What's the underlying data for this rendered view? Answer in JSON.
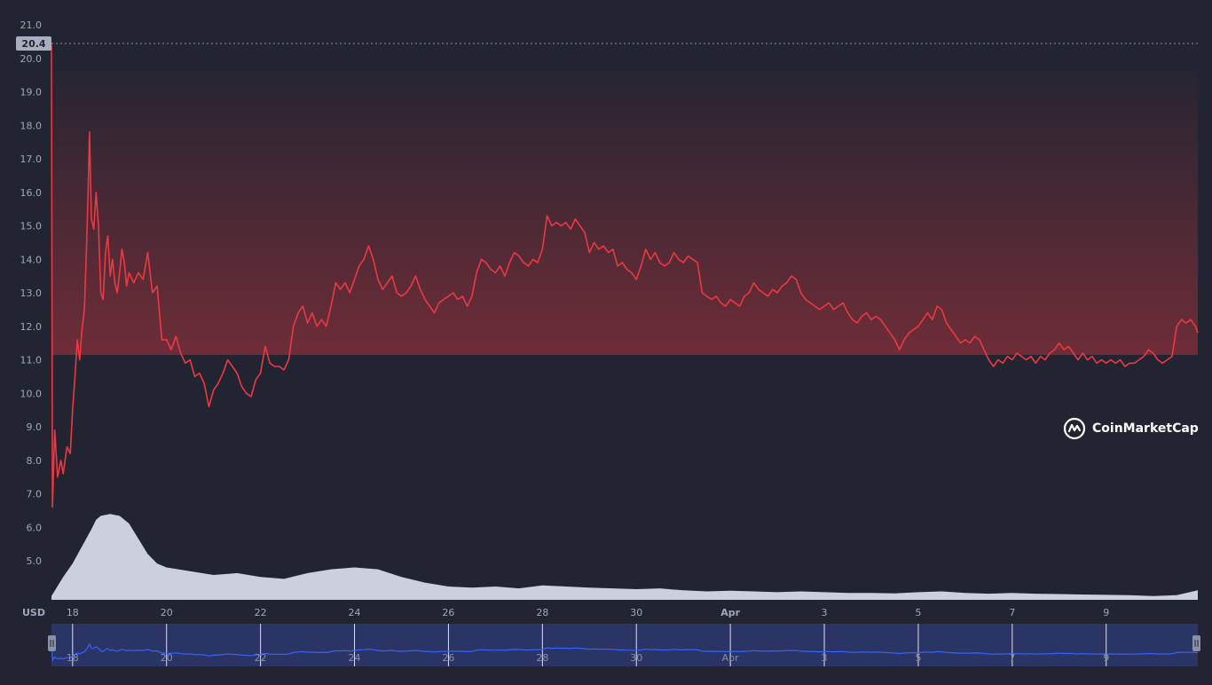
{
  "chart_data": {
    "type": "line",
    "currency_label": "USD",
    "current_price_label": "20.4",
    "ylim": [
      4.2,
      21.0
    ],
    "y_ticks": [
      "21.0",
      "20.0",
      "19.0",
      "18.0",
      "17.0",
      "16.0",
      "15.0",
      "14.0",
      "13.0",
      "12.0",
      "11.0",
      "10.0",
      "9.0",
      "8.0",
      "7.0",
      "6.0",
      "5.0"
    ],
    "x_tick_labels": [
      {
        "label": "18",
        "day": 18
      },
      {
        "label": "20",
        "day": 20
      },
      {
        "label": "22",
        "day": 22
      },
      {
        "label": "24",
        "day": 24
      },
      {
        "label": "26",
        "day": 26
      },
      {
        "label": "28",
        "day": 28
      },
      {
        "label": "30",
        "day": 30
      },
      {
        "label": "Apr",
        "day": 32,
        "bold": true
      },
      {
        "label": "3",
        "day": 34
      },
      {
        "label": "5",
        "day": 36
      },
      {
        "label": "7",
        "day": 38
      },
      {
        "label": "9",
        "day": 40
      }
    ],
    "x_range_days": [
      17.55,
      41.95
    ],
    "price_series": {
      "color": "#ea3943",
      "points": [
        [
          17.55,
          20.4
        ],
        [
          17.57,
          6.6
        ],
        [
          17.62,
          8.9
        ],
        [
          17.68,
          7.5
        ],
        [
          17.75,
          8.0
        ],
        [
          17.8,
          7.6
        ],
        [
          17.88,
          8.4
        ],
        [
          17.95,
          8.2
        ],
        [
          18.0,
          9.5
        ],
        [
          18.05,
          10.5
        ],
        [
          18.1,
          11.6
        ],
        [
          18.15,
          11.0
        ],
        [
          18.2,
          11.9
        ],
        [
          18.25,
          12.5
        ],
        [
          18.3,
          14.5
        ],
        [
          18.33,
          16.0
        ],
        [
          18.36,
          17.8
        ],
        [
          18.4,
          15.2
        ],
        [
          18.45,
          14.9
        ],
        [
          18.5,
          16.0
        ],
        [
          18.55,
          15.0
        ],
        [
          18.6,
          13.0
        ],
        [
          18.65,
          12.8
        ],
        [
          18.7,
          14.2
        ],
        [
          18.75,
          14.7
        ],
        [
          18.8,
          13.5
        ],
        [
          18.85,
          14.0
        ],
        [
          18.9,
          13.3
        ],
        [
          18.95,
          13.0
        ],
        [
          19.0,
          13.6
        ],
        [
          19.05,
          14.3
        ],
        [
          19.1,
          13.9
        ],
        [
          19.15,
          13.2
        ],
        [
          19.2,
          13.6
        ],
        [
          19.3,
          13.3
        ],
        [
          19.4,
          13.6
        ],
        [
          19.5,
          13.4
        ],
        [
          19.6,
          14.2
        ],
        [
          19.7,
          13.0
        ],
        [
          19.8,
          13.2
        ],
        [
          19.9,
          11.6
        ],
        [
          20.0,
          11.6
        ],
        [
          20.1,
          11.3
        ],
        [
          20.2,
          11.7
        ],
        [
          20.3,
          11.2
        ],
        [
          20.4,
          10.9
        ],
        [
          20.5,
          11.0
        ],
        [
          20.6,
          10.5
        ],
        [
          20.7,
          10.6
        ],
        [
          20.8,
          10.3
        ],
        [
          20.9,
          9.6
        ],
        [
          21.0,
          10.1
        ],
        [
          21.1,
          10.3
        ],
        [
          21.2,
          10.6
        ],
        [
          21.3,
          11.0
        ],
        [
          21.4,
          10.8
        ],
        [
          21.5,
          10.6
        ],
        [
          21.6,
          10.2
        ],
        [
          21.7,
          10.0
        ],
        [
          21.8,
          9.9
        ],
        [
          21.9,
          10.4
        ],
        [
          22.0,
          10.6
        ],
        [
          22.1,
          11.4
        ],
        [
          22.2,
          10.9
        ],
        [
          22.3,
          10.8
        ],
        [
          22.4,
          10.8
        ],
        [
          22.5,
          10.7
        ],
        [
          22.6,
          11.0
        ],
        [
          22.7,
          12.0
        ],
        [
          22.8,
          12.4
        ],
        [
          22.9,
          12.6
        ],
        [
          23.0,
          12.1
        ],
        [
          23.1,
          12.4
        ],
        [
          23.2,
          12.0
        ],
        [
          23.3,
          12.2
        ],
        [
          23.4,
          12.0
        ],
        [
          23.5,
          12.6
        ],
        [
          23.6,
          13.3
        ],
        [
          23.7,
          13.1
        ],
        [
          23.8,
          13.3
        ],
        [
          23.9,
          13.0
        ],
        [
          24.0,
          13.4
        ],
        [
          24.1,
          13.8
        ],
        [
          24.2,
          14.0
        ],
        [
          24.3,
          14.4
        ],
        [
          24.4,
          14.0
        ],
        [
          24.5,
          13.4
        ],
        [
          24.6,
          13.1
        ],
        [
          24.7,
          13.3
        ],
        [
          24.8,
          13.5
        ],
        [
          24.9,
          13.0
        ],
        [
          25.0,
          12.9
        ],
        [
          25.1,
          13.0
        ],
        [
          25.2,
          13.2
        ],
        [
          25.3,
          13.5
        ],
        [
          25.4,
          13.1
        ],
        [
          25.5,
          12.8
        ],
        [
          25.6,
          12.6
        ],
        [
          25.7,
          12.4
        ],
        [
          25.8,
          12.7
        ],
        [
          25.9,
          12.8
        ],
        [
          26.0,
          12.9
        ],
        [
          26.1,
          13.0
        ],
        [
          26.2,
          12.8
        ],
        [
          26.3,
          12.9
        ],
        [
          26.4,
          12.6
        ],
        [
          26.5,
          12.9
        ],
        [
          26.6,
          13.6
        ],
        [
          26.7,
          14.0
        ],
        [
          26.8,
          13.9
        ],
        [
          26.9,
          13.7
        ],
        [
          27.0,
          13.6
        ],
        [
          27.1,
          13.8
        ],
        [
          27.2,
          13.5
        ],
        [
          27.3,
          13.9
        ],
        [
          27.4,
          14.2
        ],
        [
          27.5,
          14.1
        ],
        [
          27.6,
          13.9
        ],
        [
          27.7,
          13.8
        ],
        [
          27.8,
          14.0
        ],
        [
          27.9,
          13.9
        ],
        [
          28.0,
          14.3
        ],
        [
          28.1,
          15.3
        ],
        [
          28.2,
          15.0
        ],
        [
          28.3,
          15.1
        ],
        [
          28.4,
          15.0
        ],
        [
          28.5,
          15.1
        ],
        [
          28.6,
          14.9
        ],
        [
          28.7,
          15.2
        ],
        [
          28.8,
          15.0
        ],
        [
          28.9,
          14.8
        ],
        [
          29.0,
          14.2
        ],
        [
          29.1,
          14.5
        ],
        [
          29.2,
          14.3
        ],
        [
          29.3,
          14.4
        ],
        [
          29.4,
          14.2
        ],
        [
          29.5,
          14.3
        ],
        [
          29.6,
          13.8
        ],
        [
          29.7,
          13.9
        ],
        [
          29.8,
          13.7
        ],
        [
          29.9,
          13.6
        ],
        [
          30.0,
          13.4
        ],
        [
          30.1,
          13.8
        ],
        [
          30.2,
          14.3
        ],
        [
          30.3,
          14.0
        ],
        [
          30.4,
          14.2
        ],
        [
          30.5,
          13.9
        ],
        [
          30.6,
          13.8
        ],
        [
          30.7,
          13.9
        ],
        [
          30.8,
          14.2
        ],
        [
          30.9,
          14.0
        ],
        [
          31.0,
          13.9
        ],
        [
          31.1,
          14.1
        ],
        [
          31.2,
          14.0
        ],
        [
          31.3,
          13.9
        ],
        [
          31.4,
          13.0
        ],
        [
          31.5,
          12.9
        ],
        [
          31.6,
          12.8
        ],
        [
          31.7,
          12.9
        ],
        [
          31.8,
          12.7
        ],
        [
          31.9,
          12.6
        ],
        [
          32.0,
          12.8
        ],
        [
          32.1,
          12.7
        ],
        [
          32.2,
          12.6
        ],
        [
          32.3,
          12.9
        ],
        [
          32.4,
          13.0
        ],
        [
          32.5,
          13.3
        ],
        [
          32.6,
          13.1
        ],
        [
          32.7,
          13.0
        ],
        [
          32.8,
          12.9
        ],
        [
          32.9,
          13.1
        ],
        [
          33.0,
          13.0
        ],
        [
          33.1,
          13.2
        ],
        [
          33.2,
          13.3
        ],
        [
          33.3,
          13.5
        ],
        [
          33.4,
          13.4
        ],
        [
          33.5,
          13.0
        ],
        [
          33.6,
          12.8
        ],
        [
          33.7,
          12.7
        ],
        [
          33.8,
          12.6
        ],
        [
          33.9,
          12.5
        ],
        [
          34.0,
          12.6
        ],
        [
          34.1,
          12.7
        ],
        [
          34.2,
          12.5
        ],
        [
          34.3,
          12.6
        ],
        [
          34.4,
          12.7
        ],
        [
          34.5,
          12.4
        ],
        [
          34.6,
          12.2
        ],
        [
          34.7,
          12.1
        ],
        [
          34.8,
          12.3
        ],
        [
          34.9,
          12.4
        ],
        [
          35.0,
          12.2
        ],
        [
          35.1,
          12.3
        ],
        [
          35.2,
          12.2
        ],
        [
          35.3,
          12.0
        ],
        [
          35.4,
          11.8
        ],
        [
          35.5,
          11.6
        ],
        [
          35.6,
          11.3
        ],
        [
          35.7,
          11.6
        ],
        [
          35.8,
          11.8
        ],
        [
          35.9,
          11.9
        ],
        [
          36.0,
          12.0
        ],
        [
          36.1,
          12.2
        ],
        [
          36.2,
          12.4
        ],
        [
          36.3,
          12.2
        ],
        [
          36.4,
          12.6
        ],
        [
          36.5,
          12.5
        ],
        [
          36.6,
          12.1
        ],
        [
          36.7,
          11.9
        ],
        [
          36.8,
          11.7
        ],
        [
          36.9,
          11.5
        ],
        [
          37.0,
          11.6
        ],
        [
          37.1,
          11.5
        ],
        [
          37.2,
          11.7
        ],
        [
          37.3,
          11.6
        ],
        [
          37.4,
          11.3
        ],
        [
          37.5,
          11.0
        ],
        [
          37.6,
          10.8
        ],
        [
          37.7,
          11.0
        ],
        [
          37.8,
          10.9
        ],
        [
          37.9,
          11.1
        ],
        [
          38.0,
          11.0
        ],
        [
          38.1,
          11.2
        ],
        [
          38.2,
          11.1
        ],
        [
          38.3,
          11.0
        ],
        [
          38.4,
          11.1
        ],
        [
          38.5,
          10.9
        ],
        [
          38.6,
          11.1
        ],
        [
          38.7,
          11.0
        ],
        [
          38.8,
          11.2
        ],
        [
          38.9,
          11.3
        ],
        [
          39.0,
          11.5
        ],
        [
          39.1,
          11.3
        ],
        [
          39.2,
          11.4
        ],
        [
          39.3,
          11.2
        ],
        [
          39.4,
          11.0
        ],
        [
          39.5,
          11.2
        ],
        [
          39.6,
          11.0
        ],
        [
          39.7,
          11.1
        ],
        [
          39.8,
          10.9
        ],
        [
          39.9,
          11.0
        ],
        [
          40.0,
          10.9
        ],
        [
          40.1,
          11.0
        ],
        [
          40.2,
          10.9
        ],
        [
          40.3,
          11.0
        ],
        [
          40.4,
          10.8
        ],
        [
          40.5,
          10.9
        ],
        [
          40.6,
          10.9
        ],
        [
          40.7,
          11.0
        ],
        [
          40.8,
          11.1
        ],
        [
          40.9,
          11.3
        ],
        [
          41.0,
          11.2
        ],
        [
          41.1,
          11.0
        ],
        [
          41.2,
          10.9
        ],
        [
          41.3,
          11.0
        ],
        [
          41.4,
          11.1
        ],
        [
          41.5,
          12.0
        ],
        [
          41.6,
          12.2
        ],
        [
          41.7,
          12.1
        ],
        [
          41.8,
          12.2
        ],
        [
          41.9,
          12.0
        ],
        [
          41.95,
          11.8
        ]
      ]
    },
    "volume_series": {
      "color": "#d5d9e6",
      "points": [
        [
          17.55,
          0.1
        ],
        [
          17.8,
          0.6
        ],
        [
          18.0,
          0.95
        ],
        [
          18.2,
          1.4
        ],
        [
          18.4,
          1.85
        ],
        [
          18.5,
          2.1
        ],
        [
          18.6,
          2.2
        ],
        [
          18.8,
          2.25
        ],
        [
          19.0,
          2.2
        ],
        [
          19.2,
          2.0
        ],
        [
          19.4,
          1.6
        ],
        [
          19.6,
          1.2
        ],
        [
          19.8,
          0.95
        ],
        [
          20.0,
          0.85
        ],
        [
          20.5,
          0.75
        ],
        [
          21.0,
          0.65
        ],
        [
          21.5,
          0.7
        ],
        [
          22.0,
          0.6
        ],
        [
          22.5,
          0.55
        ],
        [
          23.0,
          0.7
        ],
        [
          23.5,
          0.8
        ],
        [
          24.0,
          0.85
        ],
        [
          24.5,
          0.8
        ],
        [
          25.0,
          0.6
        ],
        [
          25.5,
          0.45
        ],
        [
          26.0,
          0.35
        ],
        [
          26.5,
          0.32
        ],
        [
          27.0,
          0.35
        ],
        [
          27.5,
          0.3
        ],
        [
          28.0,
          0.38
        ],
        [
          28.5,
          0.35
        ],
        [
          29.0,
          0.32
        ],
        [
          29.5,
          0.3
        ],
        [
          30.0,
          0.28
        ],
        [
          30.5,
          0.3
        ],
        [
          31.0,
          0.25
        ],
        [
          31.5,
          0.22
        ],
        [
          32.0,
          0.24
        ],
        [
          32.5,
          0.22
        ],
        [
          33.0,
          0.2
        ],
        [
          33.5,
          0.22
        ],
        [
          34.0,
          0.2
        ],
        [
          34.5,
          0.18
        ],
        [
          35.0,
          0.18
        ],
        [
          35.5,
          0.17
        ],
        [
          36.0,
          0.2
        ],
        [
          36.5,
          0.22
        ],
        [
          37.0,
          0.18
        ],
        [
          37.5,
          0.16
        ],
        [
          38.0,
          0.18
        ],
        [
          38.5,
          0.16
        ],
        [
          39.0,
          0.15
        ],
        [
          39.5,
          0.14
        ],
        [
          40.0,
          0.13
        ],
        [
          40.5,
          0.12
        ],
        [
          41.0,
          0.1
        ],
        [
          41.5,
          0.12
        ],
        [
          41.95,
          0.25
        ]
      ]
    }
  },
  "watermark": {
    "brand_name": "CoinMarketCap",
    "logo_icon": "coinmarketcap-logo-icon"
  }
}
